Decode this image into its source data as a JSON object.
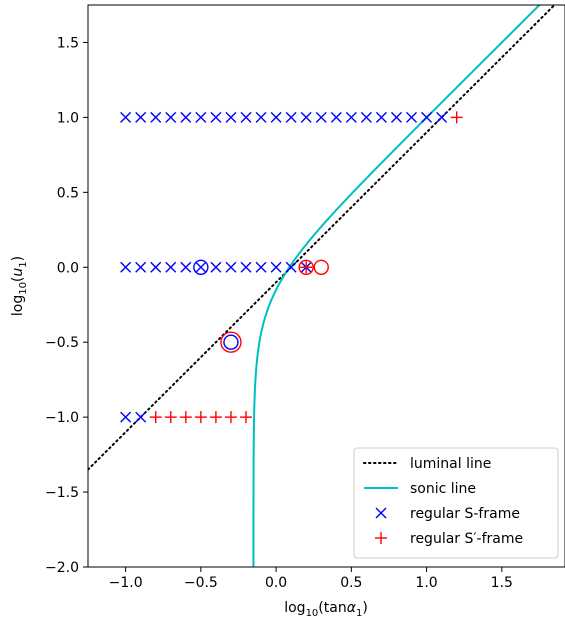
{
  "chart_data": {
    "type": "scatter",
    "xlabel": "log₁₀(tanα₁)",
    "ylabel": "log₁₀(u₁)",
    "xlim": [
      -1.25,
      1.92
    ],
    "ylim": [
      -2.0,
      1.75
    ],
    "xticks": [
      -1.0,
      -0.5,
      0.0,
      0.5,
      1.0,
      1.5
    ],
    "yticks": [
      -2.0,
      -1.5,
      -1.0,
      -0.5,
      0.0,
      0.5,
      1.0,
      1.5
    ],
    "xtick_labels": [
      "−1.0",
      "−0.5",
      "0.0",
      "0.5",
      "1.0",
      "1.5"
    ],
    "ytick_labels": [
      "−2.0",
      "−1.5",
      "−1.0",
      "−0.5",
      "0.0",
      "0.5",
      "1.0",
      "1.5"
    ],
    "grid": false,
    "legend_position": "bottom-right",
    "series": [
      {
        "name": "luminal line",
        "kind": "line",
        "style": "dotted",
        "color": "#000000",
        "x": [
          -1.25,
          1.92
        ],
        "y": [
          -1.35,
          1.82
        ]
      },
      {
        "name": "sonic line",
        "kind": "curve",
        "style": "solid",
        "color": "#00bfbf",
        "note_formula": "y = 0.5*log10(10^(2x) - 0.5)"
      },
      {
        "name": "regular S-frame",
        "kind": "marker",
        "marker": "x",
        "color": "#0000ff",
        "points": [
          [
            -1.0,
            1.0
          ],
          [
            -0.9,
            1.0
          ],
          [
            -0.8,
            1.0
          ],
          [
            -0.7,
            1.0
          ],
          [
            -0.6,
            1.0
          ],
          [
            -0.5,
            1.0
          ],
          [
            -0.4,
            1.0
          ],
          [
            -0.3,
            1.0
          ],
          [
            -0.2,
            1.0
          ],
          [
            -0.1,
            1.0
          ],
          [
            0.0,
            1.0
          ],
          [
            0.1,
            1.0
          ],
          [
            0.2,
            1.0
          ],
          [
            0.3,
            1.0
          ],
          [
            0.4,
            1.0
          ],
          [
            0.5,
            1.0
          ],
          [
            0.6,
            1.0
          ],
          [
            0.7,
            1.0
          ],
          [
            0.8,
            1.0
          ],
          [
            0.9,
            1.0
          ],
          [
            1.0,
            1.0
          ],
          [
            1.1,
            1.0
          ],
          [
            -1.0,
            0.0
          ],
          [
            -0.9,
            0.0
          ],
          [
            -0.8,
            0.0
          ],
          [
            -0.7,
            0.0
          ],
          [
            -0.6,
            0.0
          ],
          [
            -0.5,
            0.0
          ],
          [
            -0.4,
            0.0
          ],
          [
            -0.3,
            0.0
          ],
          [
            -0.2,
            0.0
          ],
          [
            -0.1,
            0.0
          ],
          [
            0.0,
            0.0
          ],
          [
            0.1,
            0.0
          ],
          [
            0.2,
            0.0
          ],
          [
            -1.0,
            -1.0
          ],
          [
            -0.9,
            -1.0
          ]
        ]
      },
      {
        "name": "regular S′-frame",
        "kind": "marker",
        "marker": "+",
        "color": "#ff0000",
        "points": [
          [
            1.2,
            1.0
          ],
          [
            0.2,
            0.0
          ],
          [
            -0.8,
            -1.0
          ],
          [
            -0.7,
            -1.0
          ],
          [
            -0.6,
            -1.0
          ],
          [
            -0.5,
            -1.0
          ],
          [
            -0.4,
            -1.0
          ],
          [
            -0.3,
            -1.0
          ],
          [
            -0.2,
            -1.0
          ]
        ]
      },
      {
        "kind": "circle",
        "color": "#0000ff",
        "points": [
          [
            -0.5,
            0.0
          ],
          [
            -0.3,
            -0.5
          ]
        ]
      },
      {
        "kind": "circle",
        "color": "#ff0000",
        "points": [
          [
            0.2,
            0.0
          ],
          [
            0.3,
            0.0
          ],
          [
            -0.3,
            -0.5
          ]
        ]
      }
    ]
  }
}
